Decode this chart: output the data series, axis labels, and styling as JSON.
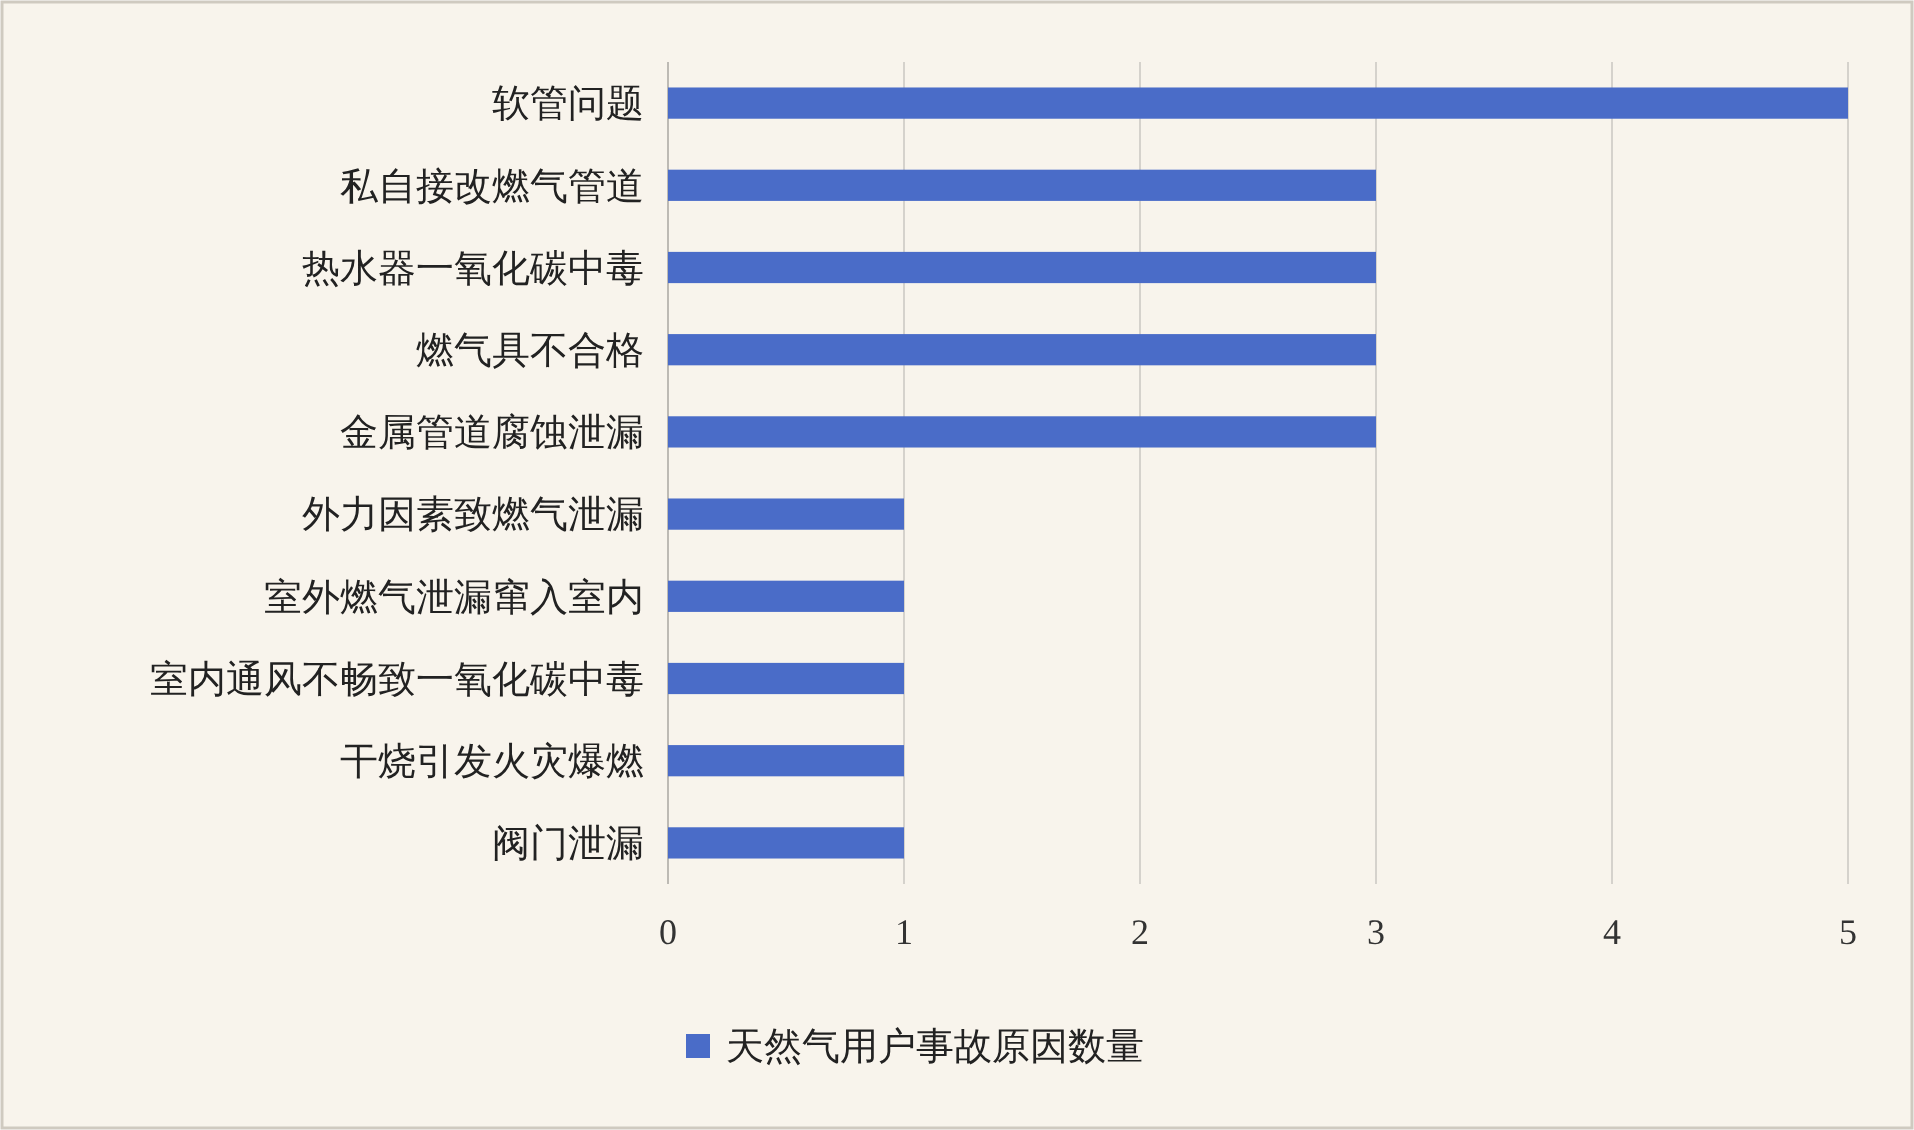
{
  "chart_data": {
    "type": "bar",
    "orientation": "horizontal",
    "categories": [
      "软管问题",
      "私自接改燃气管道",
      "热水器一氧化碳中毒",
      "燃气具不合格",
      "金属管道腐蚀泄漏",
      "外力因素致燃气泄漏",
      "室外燃气泄漏窜入室内",
      "室内通风不畅致一氧化碳中毒",
      "干烧引发火灾爆燃",
      "阀门泄漏"
    ],
    "series": [
      {
        "name": "天然气用户事故原因数量",
        "color": "#4a6cc8",
        "values": [
          5,
          3,
          3,
          3,
          3,
          1,
          1,
          1,
          1,
          1
        ]
      }
    ],
    "xlim": [
      0,
      5
    ],
    "xticks": [
      0,
      1,
      2,
      3,
      4,
      5
    ],
    "grid": "x",
    "legend": "bottom"
  }
}
